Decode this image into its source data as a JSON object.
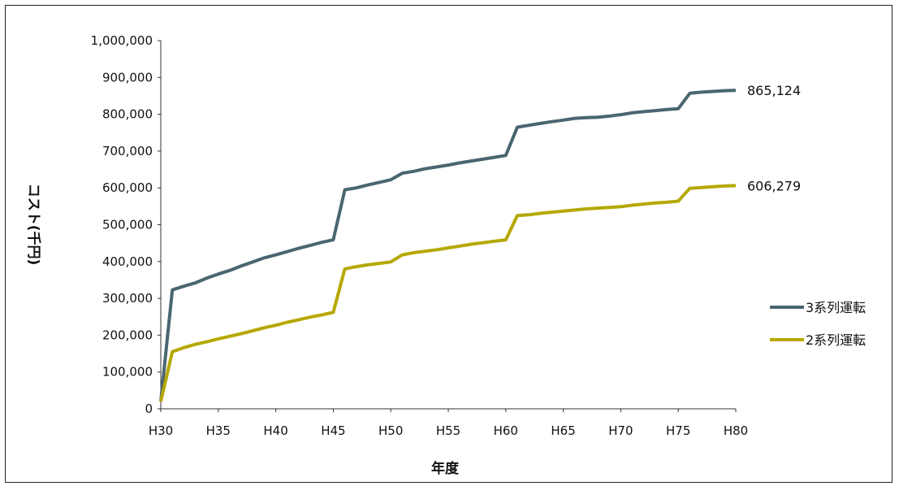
{
  "chart_data": {
    "type": "line",
    "xlabel": "年度",
    "ylabel": "コスト(千円)",
    "ylim": [
      0,
      1000000
    ],
    "y_ticks": [
      "0",
      "100,000",
      "200,000",
      "300,000",
      "400,000",
      "500,000",
      "600,000",
      "700,000",
      "800,000",
      "900,000",
      "1,000,000"
    ],
    "x_ticks": [
      "H30",
      "H35",
      "H40",
      "H45",
      "H50",
      "H55",
      "H60",
      "H65",
      "H70",
      "H75",
      "H80"
    ],
    "x": [
      30,
      31,
      32,
      33,
      34,
      35,
      36,
      37,
      38,
      39,
      40,
      41,
      42,
      43,
      44,
      45,
      46,
      47,
      48,
      49,
      50,
      51,
      52,
      53,
      54,
      55,
      56,
      57,
      58,
      59,
      60,
      61,
      62,
      63,
      64,
      65,
      66,
      67,
      68,
      69,
      70,
      71,
      72,
      73,
      74,
      75,
      76,
      77,
      78,
      79,
      80
    ],
    "series": [
      {
        "name": "3系列運転",
        "color": "#4a6670",
        "end_label": "865,124",
        "values": [
          20000,
          323000,
          333000,
          342000,
          355000,
          366000,
          376000,
          388000,
          399000,
          410000,
          418000,
          427000,
          436000,
          444000,
          452000,
          459000,
          595000,
          600000,
          608000,
          615000,
          622000,
          640000,
          645000,
          652000,
          657000,
          662000,
          668000,
          673000,
          678000,
          683000,
          688000,
          765000,
          770000,
          775000,
          780000,
          784000,
          789000,
          791000,
          792000,
          795000,
          799000,
          804000,
          807000,
          810000,
          813000,
          815000,
          857000,
          860000,
          862000,
          864000,
          865124
        ]
      },
      {
        "name": "2系列運転",
        "color": "#b5a800",
        "end_label": "606,279",
        "values": [
          20000,
          155000,
          166000,
          175000,
          182000,
          190000,
          197000,
          204000,
          212000,
          220000,
          227000,
          235000,
          242000,
          249000,
          255000,
          262000,
          380000,
          386000,
          391000,
          395000,
          399000,
          418000,
          424000,
          428000,
          432000,
          437000,
          442000,
          447000,
          451000,
          455000,
          459000,
          525000,
          527000,
          531000,
          534000,
          537000,
          540000,
          543000,
          545000,
          547000,
          549000,
          553000,
          556000,
          559000,
          561000,
          564000,
          599000,
          601000,
          603000,
          605000,
          606279
        ]
      }
    ],
    "legend_position": "right",
    "grid": false
  }
}
